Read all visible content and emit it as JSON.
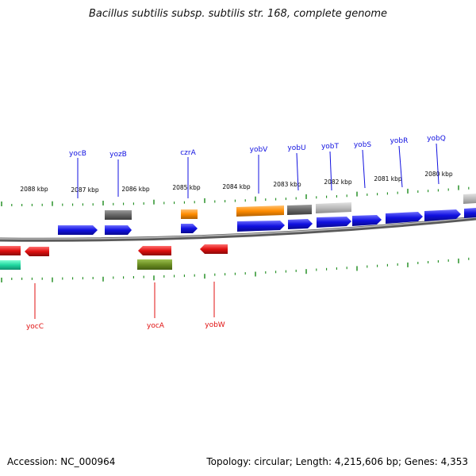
{
  "title": "Bacillus subtilis subsp. subtilis str. 168, complete genome",
  "footer": {
    "accession": "Accession: NC_000964",
    "topology": "Topology: circular; Length: 4,215,606 bp; Genes: 4,353"
  },
  "colors": {
    "forward_gene": "#1010e0",
    "reverse_gene": "#e01010",
    "hypothetical": "#666666",
    "light_gray": "#bbbbbb",
    "orange": "#ff8c00",
    "olive": "#6b8e23",
    "teal": "#20d8a0",
    "tick": "#1a8a1a",
    "backbone": "#8c8c8c"
  },
  "scale_labels": [
    "2088 kbp",
    "2087 kbp",
    "2086 kbp",
    "2085 kbp",
    "2084 kbp",
    "2083 kbp",
    "2082 kbp",
    "2081 kbp",
    "2080 kbp"
  ],
  "forward_labels": [
    "yocB",
    "yozB",
    "czrA",
    "yobV",
    "yobU",
    "yobT",
    "yobS",
    "yobR",
    "yobQ"
  ],
  "reverse_labels": [
    "yocC",
    "yocA",
    "yobW"
  ]
}
